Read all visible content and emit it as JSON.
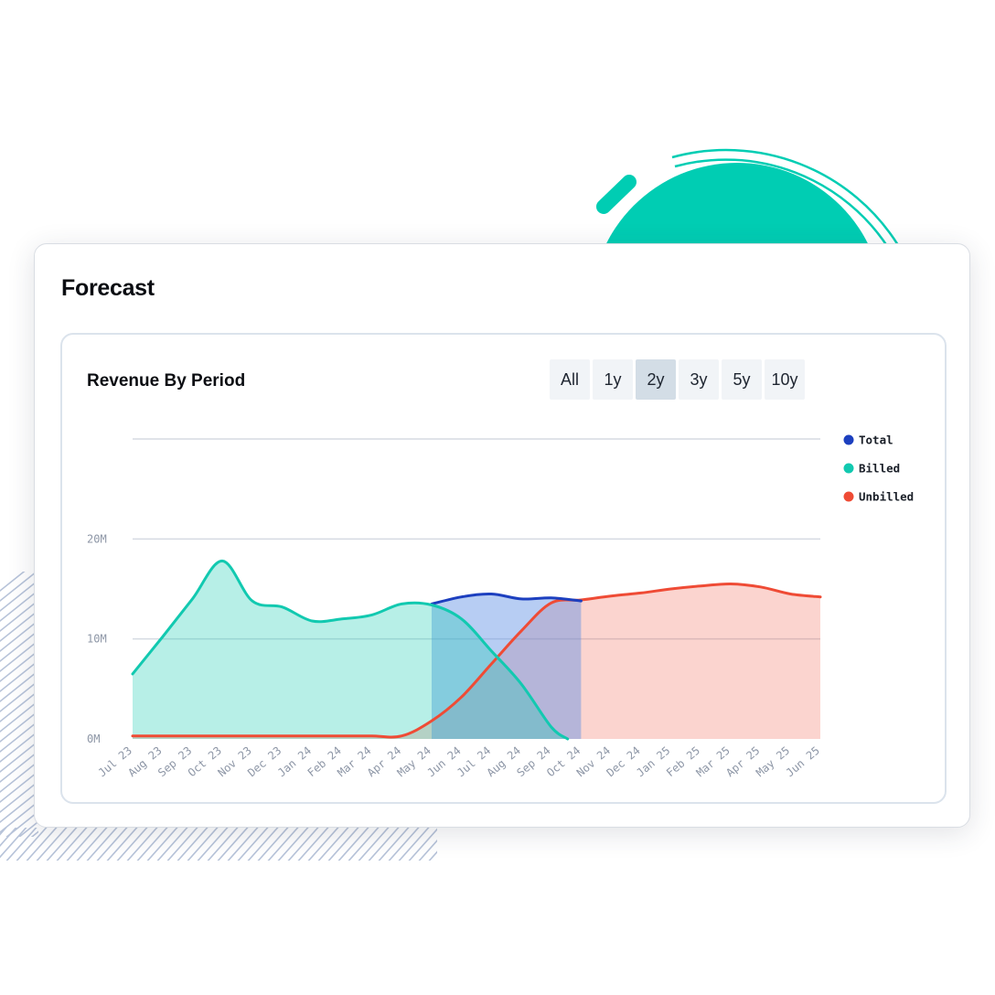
{
  "header": {
    "title": "Forecast"
  },
  "panel": {
    "title": "Revenue By Period"
  },
  "range_buttons": [
    {
      "label": "All",
      "active": false
    },
    {
      "label": "1y",
      "active": false
    },
    {
      "label": "2y",
      "active": true
    },
    {
      "label": "3y",
      "active": false
    },
    {
      "label": "5y",
      "active": false
    },
    {
      "label": "10y",
      "active": false
    }
  ],
  "colors": {
    "total": "#1c3fbf",
    "billed": "#12c9b0",
    "unbilled": "#ef4b35",
    "deco_circle": "#00cdb3"
  },
  "chart_data": {
    "type": "area",
    "title": "Revenue By Period",
    "xlabel": "",
    "ylabel": "",
    "ylim": [
      0,
      30
    ],
    "y_unit": "M",
    "y_ticks": [
      {
        "value": 0,
        "label": "0M"
      },
      {
        "value": 10,
        "label": "10M"
      },
      {
        "value": 20,
        "label": "20M"
      },
      {
        "value": 30,
        "label": ""
      }
    ],
    "categories": [
      "Jul 23",
      "Aug 23",
      "Sep 23",
      "Oct 23",
      "Nov 23",
      "Dec 23",
      "Jan 24",
      "Feb 24",
      "Mar 24",
      "Apr 24",
      "May 24",
      "Jun 24",
      "Jul 24",
      "Aug 24",
      "Sep 24",
      "Oct 24",
      "Nov 24",
      "Dec 24",
      "Jan 25",
      "Feb 25",
      "Mar 25",
      "Apr 25",
      "May 25",
      "Jun 25"
    ],
    "legend_position": "right",
    "grid": true,
    "series": [
      {
        "name": "Total",
        "values": [
          null,
          null,
          null,
          null,
          null,
          null,
          null,
          null,
          null,
          null,
          13.5,
          14.2,
          14.5,
          14.0,
          14.1,
          13.8,
          null,
          null,
          null,
          null,
          null,
          null,
          null,
          null
        ]
      },
      {
        "name": "Billed",
        "values": [
          6.5,
          10.2,
          14.0,
          17.8,
          13.8,
          13.2,
          11.8,
          12.0,
          12.4,
          13.5,
          13.4,
          12.0,
          8.8,
          5.5,
          1.2,
          null,
          null,
          null,
          null,
          null,
          null,
          null,
          null,
          null
        ]
      },
      {
        "name": "Unbilled",
        "values": [
          0.3,
          0.3,
          0.3,
          0.3,
          0.3,
          0.3,
          0.3,
          0.3,
          0.3,
          0.3,
          1.8,
          4.2,
          7.5,
          10.8,
          13.6,
          13.9,
          14.3,
          14.6,
          15.0,
          15.3,
          15.5,
          15.2,
          14.5,
          14.2
        ]
      }
    ]
  }
}
